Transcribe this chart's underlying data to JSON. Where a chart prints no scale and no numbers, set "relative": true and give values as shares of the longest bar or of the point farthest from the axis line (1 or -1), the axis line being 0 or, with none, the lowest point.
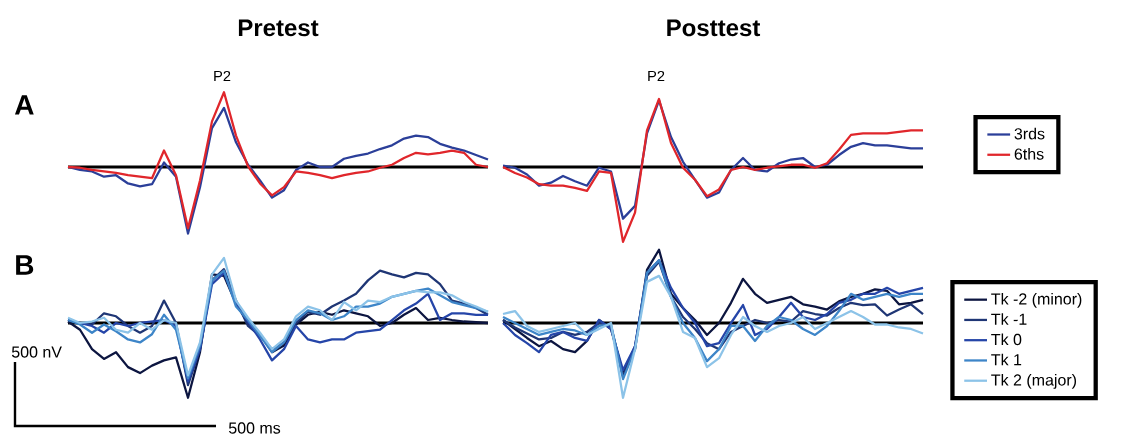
{
  "chart_data": [
    {
      "type": "line",
      "relative": true,
      "title": "Pretest",
      "annotations": [
        "A",
        "P2"
      ],
      "categories": [
        null,
        null,
        null,
        null,
        null,
        null,
        null,
        null,
        null,
        null,
        null,
        null,
        null,
        null,
        null,
        null,
        null,
        null,
        null,
        null,
        null,
        null,
        null,
        null,
        null,
        null,
        null,
        null,
        null,
        null,
        null,
        null,
        null,
        null,
        null,
        null
      ],
      "series": [
        {
          "color": "#2b3f99",
          "values": [
            0,
            -0.04,
            -0.06,
            -0.13,
            -0.11,
            -0.22,
            -0.26,
            -0.23,
            0.06,
            -0.13,
            -0.89,
            -0.27,
            0.52,
            0.79,
            0.33,
            0.03,
            -0.18,
            -0.41,
            -0.31,
            -0.04,
            0.06,
            0,
            0,
            0.11,
            0.15,
            0.18,
            0.24,
            0.29,
            0.38,
            0.42,
            0.4,
            0.31,
            0.26,
            0.22,
            0.16,
            0.1
          ]
        },
        {
          "color": "#e0262b",
          "values": [
            0,
            -0.01,
            -0.04,
            -0.06,
            -0.08,
            -0.11,
            -0.13,
            -0.15,
            0.22,
            -0.11,
            -0.82,
            -0.18,
            0.61,
            1.0,
            0.42,
            0.01,
            -0.22,
            -0.38,
            -0.27,
            -0.06,
            -0.08,
            -0.11,
            -0.15,
            -0.11,
            -0.08,
            -0.06,
            -0.01,
            0.03,
            0.12,
            0.19,
            0.17,
            0.19,
            0.22,
            0.19,
            0.03,
            0
          ]
        }
      ]
    },
    {
      "type": "line",
      "relative": true,
      "title": "Posttest",
      "annotations": [
        "P2"
      ],
      "legend": "right",
      "categories": [
        null,
        null,
        null,
        null,
        null,
        null,
        null,
        null,
        null,
        null,
        null,
        null,
        null,
        null,
        null,
        null,
        null,
        null,
        null,
        null,
        null,
        null,
        null,
        null,
        null,
        null,
        null,
        null,
        null,
        null,
        null,
        null,
        null,
        null,
        null,
        null
      ],
      "series": [
        {
          "name": "3rds",
          "color": "#2b3f99",
          "values": [
            0.02,
            -0.01,
            -0.1,
            -0.25,
            -0.21,
            -0.12,
            -0.19,
            -0.25,
            -0.01,
            -0.06,
            -0.69,
            -0.52,
            0.45,
            0.89,
            0.4,
            0.07,
            -0.17,
            -0.41,
            -0.34,
            -0.04,
            0.12,
            -0.04,
            -0.06,
            0.05,
            0.1,
            0.12,
            0,
            0.03,
            0.16,
            0.27,
            0.32,
            0.29,
            0.29,
            0.27,
            0.25,
            0.25
          ]
        },
        {
          "name": "6ths",
          "color": "#e0262b",
          "values": [
            0,
            -0.08,
            -0.14,
            -0.23,
            -0.25,
            -0.25,
            -0.28,
            -0.32,
            -0.06,
            -0.08,
            -1.0,
            -0.61,
            0.49,
            0.91,
            0.32,
            -0.01,
            -0.17,
            -0.39,
            -0.3,
            -0.04,
            0,
            -0.04,
            -0.01,
            0.01,
            0.03,
            0.03,
            -0.01,
            0.05,
            0.23,
            0.43,
            0.45,
            0.45,
            0.45,
            0.47,
            0.49,
            0.49
          ]
        }
      ]
    },
    {
      "type": "line",
      "relative": true,
      "annotations": [
        "B",
        "500 nV",
        "500 ms"
      ],
      "categories": [
        null,
        null,
        null,
        null,
        null,
        null,
        null,
        null,
        null,
        null,
        null,
        null,
        null,
        null,
        null,
        null,
        null,
        null,
        null,
        null,
        null,
        null,
        null,
        null,
        null,
        null,
        null,
        null,
        null,
        null,
        null,
        null,
        null,
        null,
        null,
        null
      ],
      "series": [
        {
          "color": "#0c1540",
          "values": [
            0.02,
            -0.09,
            -0.35,
            -0.48,
            -0.39,
            -0.59,
            -0.67,
            -0.57,
            -0.5,
            -0.46,
            -1.0,
            -0.39,
            0.65,
            0.63,
            0.26,
            0,
            -0.15,
            -0.39,
            -0.3,
            -0.02,
            0.11,
            0.15,
            0.11,
            0.17,
            0.13,
            0.09,
            -0.04,
            0,
            0.11,
            0.2,
            0.04,
            0.07,
            0.04,
            0.02,
            0.01,
            0
          ]
        },
        {
          "color": "#1f3675",
          "values": [
            0.04,
            0,
            -0.02,
            0.13,
            0.09,
            -0.04,
            -0.13,
            -0.04,
            0.3,
            0,
            -0.83,
            -0.35,
            0.57,
            0.72,
            0.3,
            -0.04,
            -0.17,
            -0.35,
            -0.26,
            0,
            0.15,
            0.11,
            0.22,
            0.3,
            0.39,
            0.57,
            0.7,
            0.65,
            0.61,
            0.67,
            0.65,
            0.52,
            0.3,
            0.26,
            0.2,
            0.11
          ]
        },
        {
          "color": "#2545a8",
          "values": [
            0.04,
            0,
            -0.04,
            -0.13,
            0,
            -0.04,
            0,
            0.02,
            0.04,
            -0.04,
            -0.78,
            -0.35,
            0.52,
            0.67,
            0.26,
            0.02,
            -0.22,
            -0.5,
            -0.35,
            -0.04,
            -0.22,
            -0.26,
            -0.22,
            -0.22,
            -0.13,
            -0.11,
            -0.09,
            0.04,
            0.17,
            0.26,
            0.39,
            0.04,
            0.13,
            0.13,
            0.11,
            0.11
          ]
        },
        {
          "color": "#3d85c8",
          "values": [
            0.04,
            -0.02,
            -0.13,
            -0.02,
            -0.11,
            -0.22,
            -0.26,
            -0.15,
            0.11,
            -0.09,
            -0.74,
            -0.3,
            0.57,
            0.7,
            0.22,
            0.04,
            -0.17,
            -0.39,
            -0.26,
            0.04,
            0.17,
            0.13,
            0.04,
            0.09,
            0.22,
            0.22,
            0.26,
            0.35,
            0.39,
            0.43,
            0.46,
            0.37,
            0.28,
            0.24,
            0.2,
            0.15
          ]
        },
        {
          "color": "#8cc3e8",
          "values": [
            0.07,
            0,
            0.02,
            0.07,
            -0.09,
            -0.13,
            0,
            -0.09,
            0.04,
            0,
            -0.7,
            -0.26,
            0.65,
            0.87,
            0.3,
            0.07,
            -0.13,
            -0.35,
            -0.22,
            0.09,
            0.22,
            0.17,
            0.04,
            0.28,
            0.17,
            0.3,
            0.28,
            0.35,
            0.39,
            0.43,
            0.41,
            0.41,
            0.37,
            0.28,
            0.22,
            0.15
          ]
        }
      ]
    },
    {
      "type": "line",
      "relative": true,
      "legend": "right",
      "categories": [
        null,
        null,
        null,
        null,
        null,
        null,
        null,
        null,
        null,
        null,
        null,
        null,
        null,
        null,
        null,
        null,
        null,
        null,
        null,
        null,
        null,
        null,
        null,
        null,
        null,
        null,
        null,
        null,
        null,
        null,
        null,
        null,
        null,
        null,
        null,
        null
      ],
      "series": [
        {
          "name": "Tk -2 (minor)",
          "color": "#0c1540",
          "values": [
            0.04,
            -0.08,
            -0.2,
            -0.31,
            -0.24,
            -0.35,
            -0.39,
            -0.24,
            0.04,
            -0.08,
            -0.67,
            -0.35,
            0.71,
            0.98,
            0.39,
            0.2,
            0.04,
            -0.16,
            0,
            0.27,
            0.59,
            0.39,
            0.27,
            0.31,
            0.35,
            0.25,
            0.22,
            0.18,
            0.29,
            0.35,
            0.39,
            0.45,
            0.43,
            0.25,
            0.27,
            0.31
          ]
        },
        {
          "name": "Tk -1",
          "color": "#1f3675",
          "values": [
            0.04,
            -0.06,
            -0.14,
            -0.22,
            -0.2,
            -0.12,
            -0.16,
            -0.12,
            0,
            -0.04,
            -0.71,
            -0.31,
            0.63,
            0.82,
            0.35,
            0.08,
            -0.08,
            -0.27,
            -0.35,
            -0.12,
            -0.04,
            0.04,
            0,
            0.04,
            0.02,
            0.16,
            0.12,
            0.1,
            0.2,
            0.27,
            0.24,
            0.25,
            0.1,
            0.18,
            0.25,
            0.12
          ]
        },
        {
          "name": "Tk 0",
          "color": "#2545a8",
          "values": [
            0,
            -0.16,
            -0.27,
            -0.39,
            -0.16,
            -0.12,
            -0.2,
            -0.24,
            0.04,
            -0.08,
            -0.63,
            -0.31,
            0.67,
            0.84,
            0.47,
            0.2,
            0,
            -0.31,
            -0.27,
            0,
            0.24,
            -0.16,
            -0.08,
            0.08,
            0.27,
            0.08,
            0.04,
            0.12,
            0.27,
            0.31,
            0.39,
            0.39,
            0.47,
            0.39,
            0.43,
            0.47
          ]
        },
        {
          "name": "Tk 1",
          "color": "#3d85c8",
          "values": [
            0.08,
            0,
            -0.08,
            -0.16,
            -0.12,
            -0.08,
            -0.1,
            -0.16,
            -0.04,
            -0.02,
            -0.75,
            -0.35,
            0.67,
            0.84,
            0.35,
            0,
            -0.2,
            -0.51,
            -0.35,
            -0.04,
            -0.04,
            -0.24,
            -0.04,
            0.08,
            0.04,
            -0.08,
            -0.16,
            -0.04,
            0.16,
            0.39,
            0.31,
            0.35,
            0.39,
            0.35,
            0.39,
            0.39
          ]
        },
        {
          "name": "Tk 2 (major)",
          "color": "#8cc3e8",
          "values": [
            0.12,
            0.16,
            -0.04,
            -0.12,
            -0.08,
            -0.04,
            0,
            -0.16,
            -0.08,
            0,
            -1.0,
            -0.35,
            0.55,
            0.63,
            0.35,
            -0.12,
            -0.2,
            -0.59,
            -0.47,
            -0.16,
            0.08,
            -0.04,
            -0.12,
            -0.04,
            0,
            0.08,
            -0.08,
            0,
            0.08,
            0.16,
            0.08,
            -0.02,
            -0.02,
            -0.06,
            -0.08,
            -0.14
          ]
        }
      ]
    }
  ]
}
